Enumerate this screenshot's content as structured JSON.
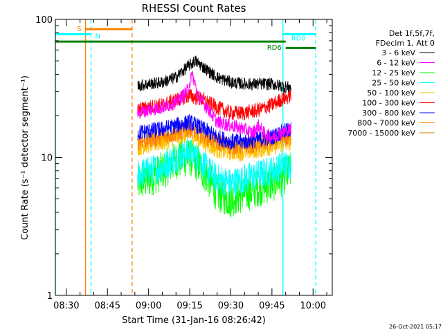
{
  "chart_data": {
    "type": "line",
    "title": "RHESSI Count Rates",
    "xlabel": "Start Time (31-Jan-16 08:26:42)",
    "ylabel": "Count Rate (s⁻¹ detector segment⁻¹)",
    "y_scale": "log",
    "ylim": [
      1,
      100
    ],
    "y_ticks": [
      {
        "value": 1,
        "label": "1"
      },
      {
        "value": 10,
        "label": "10"
      },
      {
        "value": 100,
        "label": "100"
      }
    ],
    "xlim": [
      "08:26:00",
      "10:07:00"
    ],
    "x_ticks": [
      {
        "value": "08:30",
        "label": "08:30"
      },
      {
        "value": "08:45",
        "label": "08:45"
      },
      {
        "value": "09:00",
        "label": "09:00"
      },
      {
        "value": "09:15",
        "label": "09:15"
      },
      {
        "value": "09:30",
        "label": "09:30"
      },
      {
        "value": "09:45",
        "label": "09:45"
      },
      {
        "value": "10:00",
        "label": "10:00"
      }
    ],
    "legend_header": [
      "Det 1f,5f,7f,",
      "FDecim 1, Att 0"
    ],
    "legend_position": "right",
    "series": [
      {
        "name": "3 - 6 keV",
        "color": "#000000",
        "points": [
          [
            "08:56",
            33
          ],
          [
            "09:00",
            34
          ],
          [
            "09:05",
            35
          ],
          [
            "09:10",
            38
          ],
          [
            "09:14",
            45
          ],
          [
            "09:17",
            50
          ],
          [
            "09:20",
            45
          ],
          [
            "09:25",
            38
          ],
          [
            "09:30",
            35
          ],
          [
            "09:35",
            34
          ],
          [
            "09:40",
            34
          ],
          [
            "09:45",
            34
          ],
          [
            "09:48",
            33
          ],
          [
            "09:52",
            32
          ]
        ]
      },
      {
        "name": "6 - 12 keV",
        "color": "#ff00ff",
        "points": [
          [
            "08:56",
            21
          ],
          [
            "09:00",
            22
          ],
          [
            "09:05",
            23
          ],
          [
            "09:10",
            25
          ],
          [
            "09:14",
            30
          ],
          [
            "09:16",
            40
          ],
          [
            "09:18",
            28
          ],
          [
            "09:22",
            22
          ],
          [
            "09:25",
            18
          ],
          [
            "09:30",
            17
          ],
          [
            "09:35",
            16
          ],
          [
            "09:38",
            15
          ],
          [
            "09:40",
            17
          ],
          [
            "09:42",
            15
          ],
          [
            "09:45",
            14
          ],
          [
            "09:48",
            15
          ],
          [
            "09:52",
            16
          ]
        ]
      },
      {
        "name": "12 - 25 keV",
        "color": "#00ff00",
        "points": [
          [
            "08:56",
            6.5
          ],
          [
            "09:00",
            7
          ],
          [
            "09:05",
            8
          ],
          [
            "09:10",
            9.5
          ],
          [
            "09:15",
            10
          ],
          [
            "09:18",
            9
          ],
          [
            "09:22",
            7
          ],
          [
            "09:25",
            5.5
          ],
          [
            "09:30",
            5
          ],
          [
            "09:35",
            5.5
          ],
          [
            "09:40",
            6
          ],
          [
            "09:45",
            6.5
          ],
          [
            "09:48",
            7
          ],
          [
            "09:52",
            8
          ]
        ]
      },
      {
        "name": "25 - 50 keV",
        "color": "#00ffff",
        "points": [
          [
            "08:56",
            7.5
          ],
          [
            "09:00",
            8
          ],
          [
            "09:05",
            8.5
          ],
          [
            "09:10",
            10
          ],
          [
            "09:15",
            11
          ],
          [
            "09:18",
            10
          ],
          [
            "09:22",
            8
          ],
          [
            "09:25",
            7
          ],
          [
            "09:30",
            6.5
          ],
          [
            "09:35",
            7
          ],
          [
            "09:40",
            7.5
          ],
          [
            "09:45",
            8
          ],
          [
            "09:48",
            8.5
          ],
          [
            "09:52",
            9
          ]
        ]
      },
      {
        "name": "50 - 100 keV",
        "color": "#ffc000",
        "points": [
          [
            "08:56",
            12
          ],
          [
            "09:00",
            12.5
          ],
          [
            "09:05",
            13
          ],
          [
            "09:10",
            14
          ],
          [
            "09:15",
            15
          ],
          [
            "09:20",
            13
          ],
          [
            "09:25",
            11.5
          ],
          [
            "09:30",
            11
          ],
          [
            "09:35",
            11
          ],
          [
            "09:40",
            11.5
          ],
          [
            "09:45",
            12
          ],
          [
            "09:48",
            12.5
          ],
          [
            "09:52",
            13
          ]
        ]
      },
      {
        "name": "100 - 300 keV",
        "color": "#ff0000",
        "points": [
          [
            "08:56",
            22
          ],
          [
            "09:00",
            23
          ],
          [
            "09:05",
            24
          ],
          [
            "09:10",
            26
          ],
          [
            "09:15",
            28
          ],
          [
            "09:20",
            26
          ],
          [
            "09:25",
            23
          ],
          [
            "09:30",
            21
          ],
          [
            "09:35",
            21
          ],
          [
            "09:40",
            22
          ],
          [
            "09:45",
            24
          ],
          [
            "09:48",
            26
          ],
          [
            "09:52",
            28
          ]
        ]
      },
      {
        "name": "300 - 800 keV",
        "color": "#0000ff",
        "points": [
          [
            "08:56",
            15
          ],
          [
            "09:00",
            15.5
          ],
          [
            "09:05",
            16
          ],
          [
            "09:10",
            17
          ],
          [
            "09:15",
            18
          ],
          [
            "09:20",
            16
          ],
          [
            "09:25",
            14
          ],
          [
            "09:30",
            13
          ],
          [
            "09:35",
            13
          ],
          [
            "09:40",
            13.5
          ],
          [
            "09:45",
            14
          ],
          [
            "09:48",
            15
          ],
          [
            "09:52",
            16
          ]
        ]
      },
      {
        "name": "800 - 7000 keV",
        "color": "#ff8000",
        "points": [
          [
            "08:56",
            13
          ],
          [
            "09:00",
            13.5
          ],
          [
            "09:05",
            14
          ],
          [
            "09:10",
            15
          ],
          [
            "09:15",
            16
          ],
          [
            "09:20",
            14.5
          ],
          [
            "09:25",
            13
          ],
          [
            "09:30",
            12
          ],
          [
            "09:35",
            12
          ],
          [
            "09:40",
            12.5
          ],
          [
            "09:45",
            13
          ],
          [
            "09:48",
            13.5
          ],
          [
            "09:52",
            14
          ]
        ]
      },
      {
        "name": "7000 - 15000 keV",
        "color": "#c08000",
        "points": []
      }
    ],
    "annotations": [
      {
        "label": "S",
        "color": "#ff8000",
        "bar": [
          "08:37",
          "08:54"
        ],
        "y": 85
      },
      {
        "label": "N",
        "color": "#00ffff",
        "bar": [
          "08:26",
          "08:39"
        ],
        "y": 78
      },
      {
        "label": "RD6",
        "color": "#008000",
        "bar": [
          "08:26",
          "09:50"
        ],
        "y": 69
      },
      {
        "label": "RD0",
        "color": "#00ffff",
        "bar": [
          "09:49",
          "10:01"
        ],
        "y": 78
      },
      {
        "label": "",
        "color": "#008000",
        "bar": [
          "09:50",
          "10:01"
        ],
        "y": 62
      }
    ],
    "vlines": [
      {
        "time": "08:26",
        "color": "#00ffff",
        "style": "solid"
      },
      {
        "time": "08:37",
        "color": "#ff8000",
        "style": "solid"
      },
      {
        "time": "08:39",
        "color": "#00ffff",
        "style": "dashed"
      },
      {
        "time": "08:54",
        "color": "#ff8000",
        "style": "dashed"
      },
      {
        "time": "09:49",
        "color": "#00ffff",
        "style": "solid"
      },
      {
        "time": "10:01",
        "color": "#00ffff",
        "style": "dashed"
      }
    ],
    "footer": "26-Oct-2021 05:17"
  }
}
